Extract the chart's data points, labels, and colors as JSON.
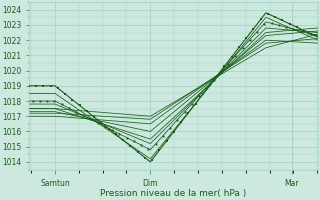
{
  "bg_color": "#cce8df",
  "grid_color": "#99ccbb",
  "line_color": "#1a5c1a",
  "marker_color": "#1a5c1a",
  "ylabel_ticks": [
    1014,
    1015,
    1016,
    1017,
    1018,
    1019,
    1020,
    1021,
    1022,
    1023,
    1024
  ],
  "ylim": [
    1013.5,
    1024.5
  ],
  "xlabel": "Pression niveau de la mer( hPa )",
  "xtick_labels": [
    "Samtun",
    "Dim",
    "Mar"
  ],
  "xtick_positions": [
    0.09,
    0.42,
    0.91
  ],
  "xlim": [
    0.0,
    1.0
  ],
  "font_color": "#1a5c1a",
  "tick_fontsize": 5.5,
  "xlabel_fontsize": 6.5
}
